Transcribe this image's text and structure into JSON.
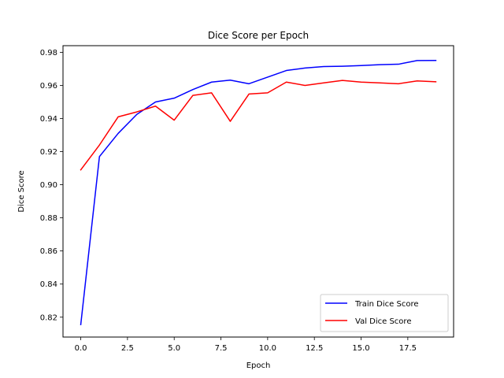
{
  "chart_data": {
    "type": "line",
    "title": "Dice Score per Epoch",
    "xlabel": "Epoch",
    "ylabel": "Dice Score",
    "xlim": [
      -0.95,
      19.95
    ],
    "ylim": [
      0.808,
      0.984
    ],
    "xticks": [
      0,
      2.5,
      5,
      7.5,
      10,
      12.5,
      15,
      17.5
    ],
    "xtick_labels": [
      "0.0",
      "2.5",
      "5.0",
      "7.5",
      "10.0",
      "12.5",
      "15.0",
      "17.5"
    ],
    "yticks": [
      0.82,
      0.84,
      0.86,
      0.88,
      0.9,
      0.92,
      0.94,
      0.96,
      0.98
    ],
    "ytick_labels": [
      "0.82",
      "0.84",
      "0.86",
      "0.88",
      "0.90",
      "0.92",
      "0.94",
      "0.96",
      "0.98"
    ],
    "grid": false,
    "legend_position": "lower-right",
    "x": [
      0,
      1,
      2,
      3,
      4,
      5,
      6,
      7,
      8,
      9,
      10,
      11,
      12,
      13,
      14,
      15,
      16,
      17,
      18,
      19
    ],
    "series": [
      {
        "name": "Train Dice Score",
        "color": "#0000ff",
        "values": [
          0.8155,
          0.917,
          0.931,
          0.9425,
          0.95,
          0.9523,
          0.9575,
          0.962,
          0.9632,
          0.961,
          0.965,
          0.969,
          0.9705,
          0.9714,
          0.9716,
          0.972,
          0.9725,
          0.9728,
          0.975,
          0.9751
        ]
      },
      {
        "name": "Val Dice Score",
        "color": "#ff0000",
        "values": [
          0.909,
          0.924,
          0.941,
          0.944,
          0.9475,
          0.939,
          0.954,
          0.9555,
          0.9383,
          0.9548,
          0.9555,
          0.962,
          0.96,
          0.9615,
          0.963,
          0.962,
          0.9615,
          0.961,
          0.9627,
          0.9622
        ]
      }
    ]
  }
}
